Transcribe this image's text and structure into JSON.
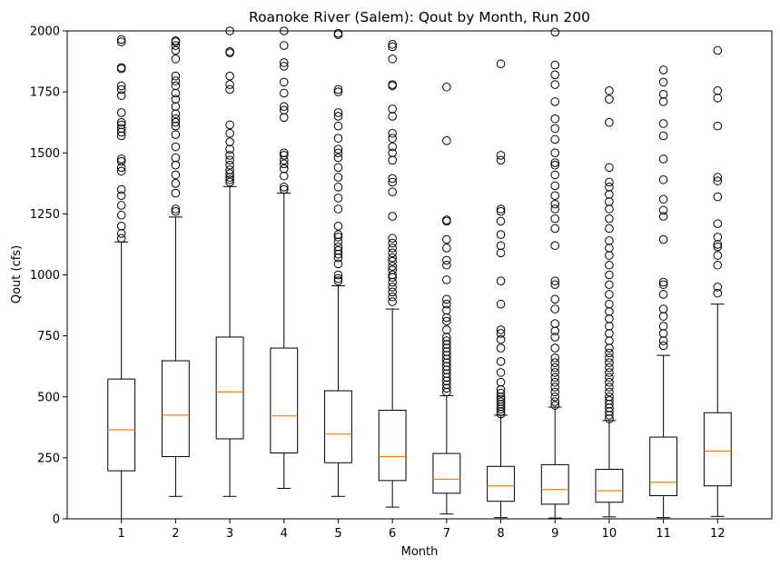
{
  "chart_data": {
    "type": "box",
    "title": "Roanoke River (Salem): Qout by Month, Run 200",
    "xlabel": "Month",
    "ylabel": "Qout (cfs)",
    "ylim": [
      0,
      2000
    ],
    "yticks": [
      0,
      250,
      500,
      750,
      1000,
      1250,
      1500,
      1750,
      2000
    ],
    "grid": false,
    "colors": {
      "box": "#000000",
      "median": "#ff7f0e",
      "flier": "#000000"
    },
    "boxes": [
      {
        "month": "1",
        "whisker_low": 0,
        "q1": 197,
        "median": 365,
        "q3": 573,
        "whisker_high": 1135,
        "fliers": [
          1150,
          1170,
          1200,
          1245,
          1285,
          1325,
          1350,
          1425,
          1440,
          1465,
          1475,
          1570,
          1585,
          1600,
          1615,
          1625,
          1665,
          1735,
          1760,
          1775,
          1845,
          1850,
          1955,
          1965
        ]
      },
      {
        "month": "2",
        "whisker_low": 92,
        "q1": 255,
        "median": 425,
        "q3": 648,
        "whisker_high": 1237,
        "fliers": [
          1260,
          1270,
          1335,
          1375,
          1410,
          1450,
          1480,
          1525,
          1575,
          1610,
          1625,
          1640,
          1660,
          1690,
          1720,
          1745,
          1775,
          1795,
          1815,
          1885,
          1920,
          1940,
          1955,
          1960
        ]
      },
      {
        "month": "3",
        "whisker_low": 92,
        "q1": 328,
        "median": 520,
        "q3": 745,
        "whisker_high": 1362,
        "fliers": [
          1380,
          1390,
          1400,
          1415,
          1430,
          1450,
          1470,
          1490,
          1515,
          1545,
          1580,
          1615,
          1760,
          1780,
          1815,
          1910,
          1915,
          2000
        ]
      },
      {
        "month": "4",
        "whisker_low": 125,
        "q1": 270,
        "median": 422,
        "q3": 700,
        "whisker_high": 1335,
        "fliers": [
          1350,
          1360,
          1405,
          1435,
          1455,
          1470,
          1490,
          1500,
          1645,
          1675,
          1690,
          1745,
          1790,
          1855,
          1870,
          1940,
          2000
        ]
      },
      {
        "month": "5",
        "whisker_low": 92,
        "q1": 230,
        "median": 348,
        "q3": 525,
        "whisker_high": 955,
        "fliers": [
          975,
          985,
          1000,
          1045,
          1070,
          1085,
          1100,
          1115,
          1135,
          1155,
          1165,
          1200,
          1270,
          1315,
          1360,
          1400,
          1440,
          1480,
          1500,
          1515,
          1560,
          1610,
          1650,
          1665,
          1750,
          1760,
          1985,
          1990
        ]
      },
      {
        "month": "6",
        "whisker_low": 48,
        "q1": 157,
        "median": 255,
        "q3": 445,
        "whisker_high": 860,
        "fliers": [
          890,
          910,
          930,
          950,
          970,
          990,
          1000,
          1020,
          1035,
          1055,
          1070,
          1090,
          1110,
          1130,
          1150,
          1240,
          1340,
          1380,
          1395,
          1470,
          1500,
          1525,
          1560,
          1580,
          1650,
          1680,
          1775,
          1780,
          1885,
          1935,
          1945
        ]
      },
      {
        "month": "7",
        "whisker_low": 20,
        "q1": 105,
        "median": 162,
        "q3": 268,
        "whisker_high": 505,
        "fliers": [
          520,
          535,
          550,
          565,
          580,
          595,
          610,
          625,
          640,
          655,
          670,
          685,
          700,
          715,
          730,
          745,
          775,
          810,
          825,
          855,
          880,
          900,
          980,
          1040,
          1060,
          1110,
          1145,
          1220,
          1225,
          1550,
          1770
        ]
      },
      {
        "month": "8",
        "whisker_low": 5,
        "q1": 72,
        "median": 135,
        "q3": 215,
        "whisker_high": 425,
        "fliers": [
          430,
          440,
          450,
          460,
          470,
          480,
          490,
          500,
          515,
          530,
          560,
          600,
          645,
          700,
          735,
          760,
          775,
          880,
          975,
          1090,
          1120,
          1165,
          1220,
          1260,
          1270,
          1470,
          1490,
          1865
        ]
      },
      {
        "month": "9",
        "whisker_low": 3,
        "q1": 60,
        "median": 120,
        "q3": 222,
        "whisker_high": 458,
        "fliers": [
          465,
          480,
          500,
          520,
          540,
          560,
          580,
          600,
          620,
          640,
          660,
          700,
          745,
          770,
          800,
          860,
          900,
          960,
          975,
          1120,
          1190,
          1230,
          1270,
          1290,
          1325,
          1365,
          1410,
          1450,
          1460,
          1500,
          1555,
          1600,
          1640,
          1710,
          1780,
          1820,
          1860,
          1995
        ]
      },
      {
        "month": "10",
        "whisker_low": 8,
        "q1": 68,
        "median": 115,
        "q3": 203,
        "whisker_high": 403,
        "fliers": [
          410,
          425,
          440,
          455,
          470,
          485,
          500,
          520,
          540,
          560,
          580,
          600,
          620,
          640,
          660,
          680,
          700,
          730,
          760,
          790,
          820,
          850,
          880,
          920,
          960,
          1000,
          1040,
          1080,
          1110,
          1140,
          1190,
          1230,
          1270,
          1300,
          1330,
          1360,
          1380,
          1440,
          1625,
          1720,
          1755
        ]
      },
      {
        "month": "11",
        "whisker_low": 5,
        "q1": 95,
        "median": 150,
        "q3": 335,
        "whisker_high": 670,
        "fliers": [
          710,
          730,
          760,
          790,
          830,
          860,
          920,
          960,
          970,
          1145,
          1240,
          1265,
          1310,
          1390,
          1475,
          1570,
          1620,
          1710,
          1740,
          1790,
          1840
        ]
      },
      {
        "month": "12",
        "whisker_low": 10,
        "q1": 135,
        "median": 278,
        "q3": 435,
        "whisker_high": 880,
        "fliers": [
          925,
          950,
          1040,
          1080,
          1115,
          1125,
          1155,
          1210,
          1320,
          1385,
          1400,
          1610,
          1725,
          1755,
          1920
        ]
      }
    ]
  }
}
